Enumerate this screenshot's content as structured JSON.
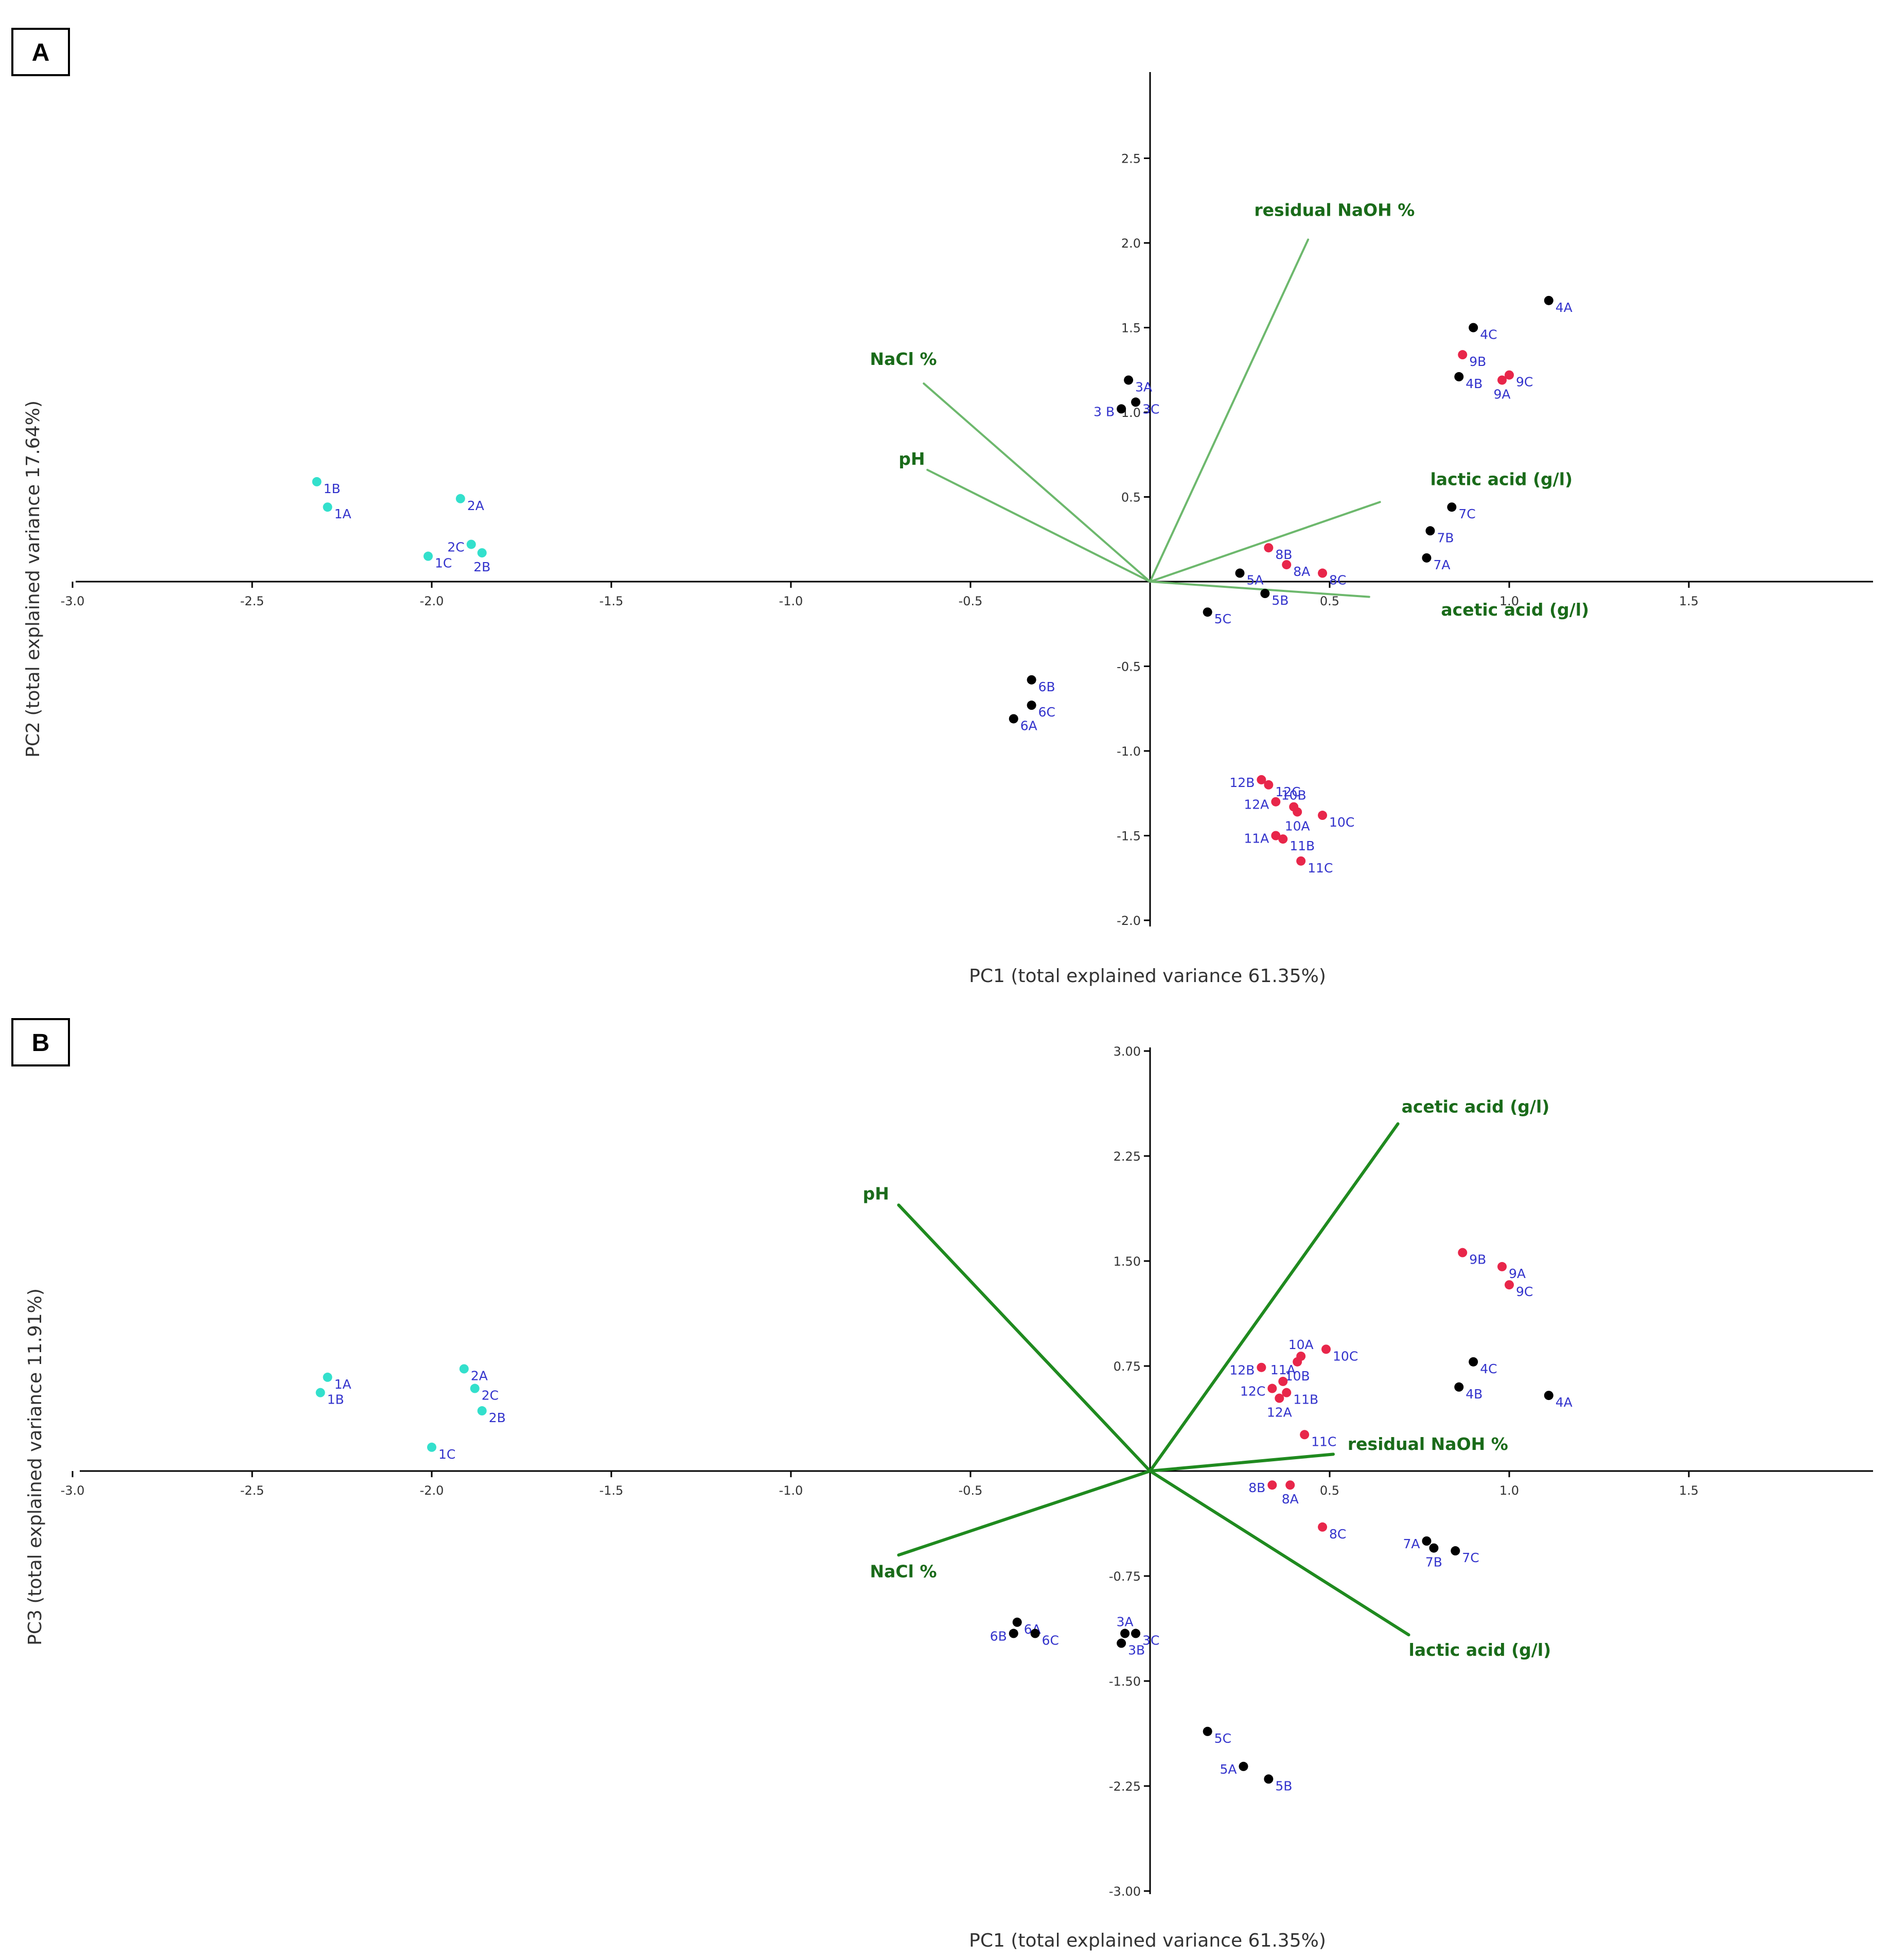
{
  "colors": {
    "cyan": "#33e0cc",
    "black": "#000000",
    "red": "#e8264a",
    "label": "#3333cc",
    "vector_a": "#6db86d",
    "vector_b": "#1f8a1f",
    "vector_label": "#1a6b1a"
  },
  "chart_data": [
    {
      "type": "scatter",
      "panel": "A",
      "xlabel": "PC1 (total explained variance 61.35%)",
      "ylabel": "PC2 (total explained variance 17.64%)",
      "xlim": [
        -3.0,
        2.0
      ],
      "ylim": [
        -2.05,
        3.0
      ],
      "xticks": [
        {
          "v": -3.0,
          "label": "-3.0"
        },
        {
          "v": -2.5,
          "label": "-2.5"
        },
        {
          "v": -2.0,
          "label": "-2.0"
        },
        {
          "v": -1.5,
          "label": "-1.5"
        },
        {
          "v": -1.0,
          "label": "-1.0"
        },
        {
          "v": -0.5,
          "label": "-0.5"
        },
        {
          "v": 0.5,
          "label": "0.5"
        },
        {
          "v": 1.0,
          "label": "1.0"
        },
        {
          "v": 1.5,
          "label": "1.5"
        }
      ],
      "yticks": [
        {
          "v": 2.5,
          "label": "2.5"
        },
        {
          "v": 2.0,
          "label": "2.0"
        },
        {
          "v": 1.5,
          "label": "1.5"
        },
        {
          "v": 1.0,
          "label": "1.0"
        },
        {
          "v": 0.5,
          "label": "0.5"
        },
        {
          "v": -0.5,
          "label": "-0.5"
        },
        {
          "v": -1.0,
          "label": "-1.0"
        },
        {
          "v": -1.5,
          "label": "-1.5"
        },
        {
          "v": -2.0,
          "label": "-2.0"
        }
      ],
      "points": [
        {
          "id": "1B",
          "x": -2.32,
          "y": 0.59,
          "color": "cyan",
          "pos": "r"
        },
        {
          "id": "1A",
          "x": -2.29,
          "y": 0.44,
          "color": "cyan",
          "pos": "r"
        },
        {
          "id": "2A",
          "x": -1.92,
          "y": 0.49,
          "color": "cyan",
          "pos": "r"
        },
        {
          "id": "2C",
          "x": -1.89,
          "y": 0.22,
          "color": "cyan",
          "pos": "l"
        },
        {
          "id": "2B",
          "x": -1.86,
          "y": 0.17,
          "color": "cyan",
          "pos": "b"
        },
        {
          "id": "1C",
          "x": -2.01,
          "y": 0.15,
          "color": "cyan",
          "pos": "r"
        },
        {
          "id": "3A",
          "x": -0.06,
          "y": 1.19,
          "color": "black",
          "pos": "r"
        },
        {
          "id": "3C",
          "x": -0.04,
          "y": 1.06,
          "color": "black",
          "pos": "r"
        },
        {
          "id": "3 B",
          "x": -0.08,
          "y": 1.02,
          "color": "black",
          "pos": "l"
        },
        {
          "id": "4A",
          "x": 1.11,
          "y": 1.66,
          "color": "black",
          "pos": "r"
        },
        {
          "id": "4C",
          "x": 0.9,
          "y": 1.5,
          "color": "black",
          "pos": "r"
        },
        {
          "id": "4B",
          "x": 0.86,
          "y": 1.21,
          "color": "black",
          "pos": "r"
        },
        {
          "id": "9B",
          "x": 0.87,
          "y": 1.34,
          "color": "red",
          "pos": "r"
        },
        {
          "id": "9C",
          "x": 1.0,
          "y": 1.22,
          "color": "red",
          "pos": "r"
        },
        {
          "id": "9A",
          "x": 0.98,
          "y": 1.19,
          "color": "red",
          "pos": "b"
        },
        {
          "id": "7C",
          "x": 0.84,
          "y": 0.44,
          "color": "black",
          "pos": "r"
        },
        {
          "id": "7B",
          "x": 0.78,
          "y": 0.3,
          "color": "black",
          "pos": "r"
        },
        {
          "id": "7A",
          "x": 0.77,
          "y": 0.14,
          "color": "black",
          "pos": "r"
        },
        {
          "id": "8B",
          "x": 0.33,
          "y": 0.2,
          "color": "red",
          "pos": "r"
        },
        {
          "id": "8A",
          "x": 0.38,
          "y": 0.1,
          "color": "red",
          "pos": "r"
        },
        {
          "id": "8C",
          "x": 0.48,
          "y": 0.05,
          "color": "red",
          "pos": "r"
        },
        {
          "id": "5A",
          "x": 0.25,
          "y": 0.05,
          "color": "black",
          "pos": "r"
        },
        {
          "id": "5B",
          "x": 0.32,
          "y": -0.07,
          "color": "black",
          "pos": "r"
        },
        {
          "id": "5C",
          "x": 0.16,
          "y": -0.18,
          "color": "black",
          "pos": "r"
        },
        {
          "id": "6B",
          "x": -0.33,
          "y": -0.58,
          "color": "black",
          "pos": "r"
        },
        {
          "id": "6C",
          "x": -0.33,
          "y": -0.73,
          "color": "black",
          "pos": "r"
        },
        {
          "id": "6A",
          "x": -0.38,
          "y": -0.81,
          "color": "black",
          "pos": "r"
        },
        {
          "id": "12B",
          "x": 0.31,
          "y": -1.17,
          "color": "red",
          "pos": "l"
        },
        {
          "id": "12C",
          "x": 0.33,
          "y": -1.2,
          "color": "red",
          "pos": "r"
        },
        {
          "id": "12A",
          "x": 0.35,
          "y": -1.3,
          "color": "red",
          "pos": "l"
        },
        {
          "id": "10B",
          "x": 0.4,
          "y": -1.33,
          "color": "red",
          "pos": "t"
        },
        {
          "id": "10A",
          "x": 0.41,
          "y": -1.36,
          "color": "red",
          "pos": "b"
        },
        {
          "id": "10C",
          "x": 0.48,
          "y": -1.38,
          "color": "red",
          "pos": "r"
        },
        {
          "id": "11A",
          "x": 0.35,
          "y": -1.5,
          "color": "red",
          "pos": "l"
        },
        {
          "id": "11B",
          "x": 0.37,
          "y": -1.52,
          "color": "red",
          "pos": "r"
        },
        {
          "id": "11C",
          "x": 0.42,
          "y": -1.65,
          "color": "red",
          "pos": "r"
        }
      ],
      "loadings": [
        {
          "name": "residual NaOH %",
          "x": 0.44,
          "y": 2.02,
          "lx": 0.29,
          "ly": 2.16
        },
        {
          "name": "NaCl %",
          "x": -0.63,
          "y": 1.17,
          "lx": -0.78,
          "ly": 1.28
        },
        {
          "name": "pH",
          "x": -0.62,
          "y": 0.66,
          "lx": -0.7,
          "ly": 0.69
        },
        {
          "name": "lactic acid (g/l)",
          "x": 0.64,
          "y": 0.47,
          "lx": 0.78,
          "ly": 0.57
        },
        {
          "name": "acetic acid (g/l)",
          "x": 0.61,
          "y": -0.09,
          "lx": 0.81,
          "ly": -0.2
        }
      ]
    },
    {
      "type": "scatter",
      "panel": "B",
      "xlabel": "PC1 (total explained variance 61.35%)",
      "ylabel": "PC3 (total explained variance 11.91%)",
      "xlim": [
        -3.0,
        2.0
      ],
      "ylim": [
        -3.0,
        3.0
      ],
      "xticks": [
        {
          "v": -3.0,
          "label": "-3.0"
        },
        {
          "v": -2.5,
          "label": "-2.5"
        },
        {
          "v": -2.0,
          "label": "-2.0"
        },
        {
          "v": -1.5,
          "label": "-1.5"
        },
        {
          "v": -1.0,
          "label": "-1.0"
        },
        {
          "v": -0.5,
          "label": "-0.5"
        },
        {
          "v": 0.5,
          "label": "0.5"
        },
        {
          "v": 1.0,
          "label": "1.0"
        },
        {
          "v": 1.5,
          "label": "1.5"
        }
      ],
      "yticks": [
        {
          "v": 3.0,
          "label": "3.00"
        },
        {
          "v": 2.25,
          "label": "2.25"
        },
        {
          "v": 1.5,
          "label": "1.50"
        },
        {
          "v": 0.75,
          "label": "0.75"
        },
        {
          "v": -0.75,
          "label": "-0.75"
        },
        {
          "v": -1.5,
          "label": "-1.50"
        },
        {
          "v": -2.25,
          "label": "-2.25"
        },
        {
          "v": -3.0,
          "label": "-3.00"
        }
      ],
      "points": [
        {
          "id": "1A",
          "x": -2.29,
          "y": 0.67,
          "color": "cyan",
          "pos": "r"
        },
        {
          "id": "1B",
          "x": -2.31,
          "y": 0.56,
          "color": "cyan",
          "pos": "r"
        },
        {
          "id": "2A",
          "x": -1.91,
          "y": 0.73,
          "color": "cyan",
          "pos": "r"
        },
        {
          "id": "2C",
          "x": -1.88,
          "y": 0.59,
          "color": "cyan",
          "pos": "r"
        },
        {
          "id": "2B",
          "x": -1.86,
          "y": 0.43,
          "color": "cyan",
          "pos": "r"
        },
        {
          "id": "1C",
          "x": -2.0,
          "y": 0.17,
          "color": "cyan",
          "pos": "r"
        },
        {
          "id": "9B",
          "x": 0.87,
          "y": 1.56,
          "color": "red",
          "pos": "r"
        },
        {
          "id": "9A",
          "x": 0.98,
          "y": 1.46,
          "color": "red",
          "pos": "r"
        },
        {
          "id": "9C",
          "x": 1.0,
          "y": 1.33,
          "color": "red",
          "pos": "r"
        },
        {
          "id": "10A",
          "x": 0.42,
          "y": 0.82,
          "color": "red",
          "pos": "t"
        },
        {
          "id": "10C",
          "x": 0.49,
          "y": 0.87,
          "color": "red",
          "pos": "r"
        },
        {
          "id": "10B",
          "x": 0.41,
          "y": 0.78,
          "color": "red",
          "pos": "b"
        },
        {
          "id": "12B",
          "x": 0.31,
          "y": 0.74,
          "color": "red",
          "pos": "l"
        },
        {
          "id": "11A",
          "x": 0.37,
          "y": 0.64,
          "color": "red",
          "pos": "t"
        },
        {
          "id": "12C",
          "x": 0.34,
          "y": 0.59,
          "color": "red",
          "pos": "l"
        },
        {
          "id": "11B",
          "x": 0.38,
          "y": 0.56,
          "color": "red",
          "pos": "r"
        },
        {
          "id": "12A",
          "x": 0.36,
          "y": 0.52,
          "color": "red",
          "pos": "b"
        },
        {
          "id": "11C",
          "x": 0.43,
          "y": 0.26,
          "color": "red",
          "pos": "r"
        },
        {
          "id": "4C",
          "x": 0.9,
          "y": 0.78,
          "color": "black",
          "pos": "r"
        },
        {
          "id": "4B",
          "x": 0.86,
          "y": 0.6,
          "color": "black",
          "pos": "r"
        },
        {
          "id": "4A",
          "x": 1.11,
          "y": 0.54,
          "color": "black",
          "pos": "r"
        },
        {
          "id": "8B",
          "x": 0.34,
          "y": -0.1,
          "color": "red",
          "pos": "l"
        },
        {
          "id": "8A",
          "x": 0.39,
          "y": -0.1,
          "color": "red",
          "pos": "b"
        },
        {
          "id": "8C",
          "x": 0.48,
          "y": -0.4,
          "color": "red",
          "pos": "r"
        },
        {
          "id": "7A",
          "x": 0.77,
          "y": -0.5,
          "color": "black",
          "pos": "l"
        },
        {
          "id": "7B",
          "x": 0.79,
          "y": -0.55,
          "color": "black",
          "pos": "b"
        },
        {
          "id": "7C",
          "x": 0.85,
          "y": -0.57,
          "color": "black",
          "pos": "r"
        },
        {
          "id": "6A",
          "x": -0.37,
          "y": -1.08,
          "color": "black",
          "pos": "r"
        },
        {
          "id": "6B",
          "x": -0.38,
          "y": -1.16,
          "color": "black",
          "pos": "l"
        },
        {
          "id": "6C",
          "x": -0.32,
          "y": -1.16,
          "color": "black",
          "pos": "r"
        },
        {
          "id": "3A",
          "x": -0.07,
          "y": -1.16,
          "color": "black",
          "pos": "t"
        },
        {
          "id": "3C",
          "x": -0.04,
          "y": -1.16,
          "color": "black",
          "pos": "r"
        },
        {
          "id": "3B",
          "x": -0.08,
          "y": -1.23,
          "color": "black",
          "pos": "r"
        },
        {
          "id": "5C",
          "x": 0.16,
          "y": -1.86,
          "color": "black",
          "pos": "r"
        },
        {
          "id": "5A",
          "x": 0.26,
          "y": -2.11,
          "color": "black",
          "pos": "l"
        },
        {
          "id": "5B",
          "x": 0.33,
          "y": -2.2,
          "color": "black",
          "pos": "r"
        }
      ],
      "loadings": [
        {
          "name": "acetic acid (g/l)",
          "x": 0.69,
          "y": 2.48,
          "lx": 0.7,
          "ly": 2.56
        },
        {
          "name": "pH",
          "x": -0.7,
          "y": 1.9,
          "lx": -0.8,
          "ly": 1.94
        },
        {
          "name": "residual NaOH %",
          "x": 0.51,
          "y": 0.12,
          "lx": 0.55,
          "ly": 0.15
        },
        {
          "name": "NaCl %",
          "x": -0.7,
          "y": -0.6,
          "lx": -0.78,
          "ly": -0.76
        },
        {
          "name": "lactic acid (g/l)",
          "x": 0.72,
          "y": -1.17,
          "lx": 0.72,
          "ly": -1.32
        }
      ]
    }
  ]
}
